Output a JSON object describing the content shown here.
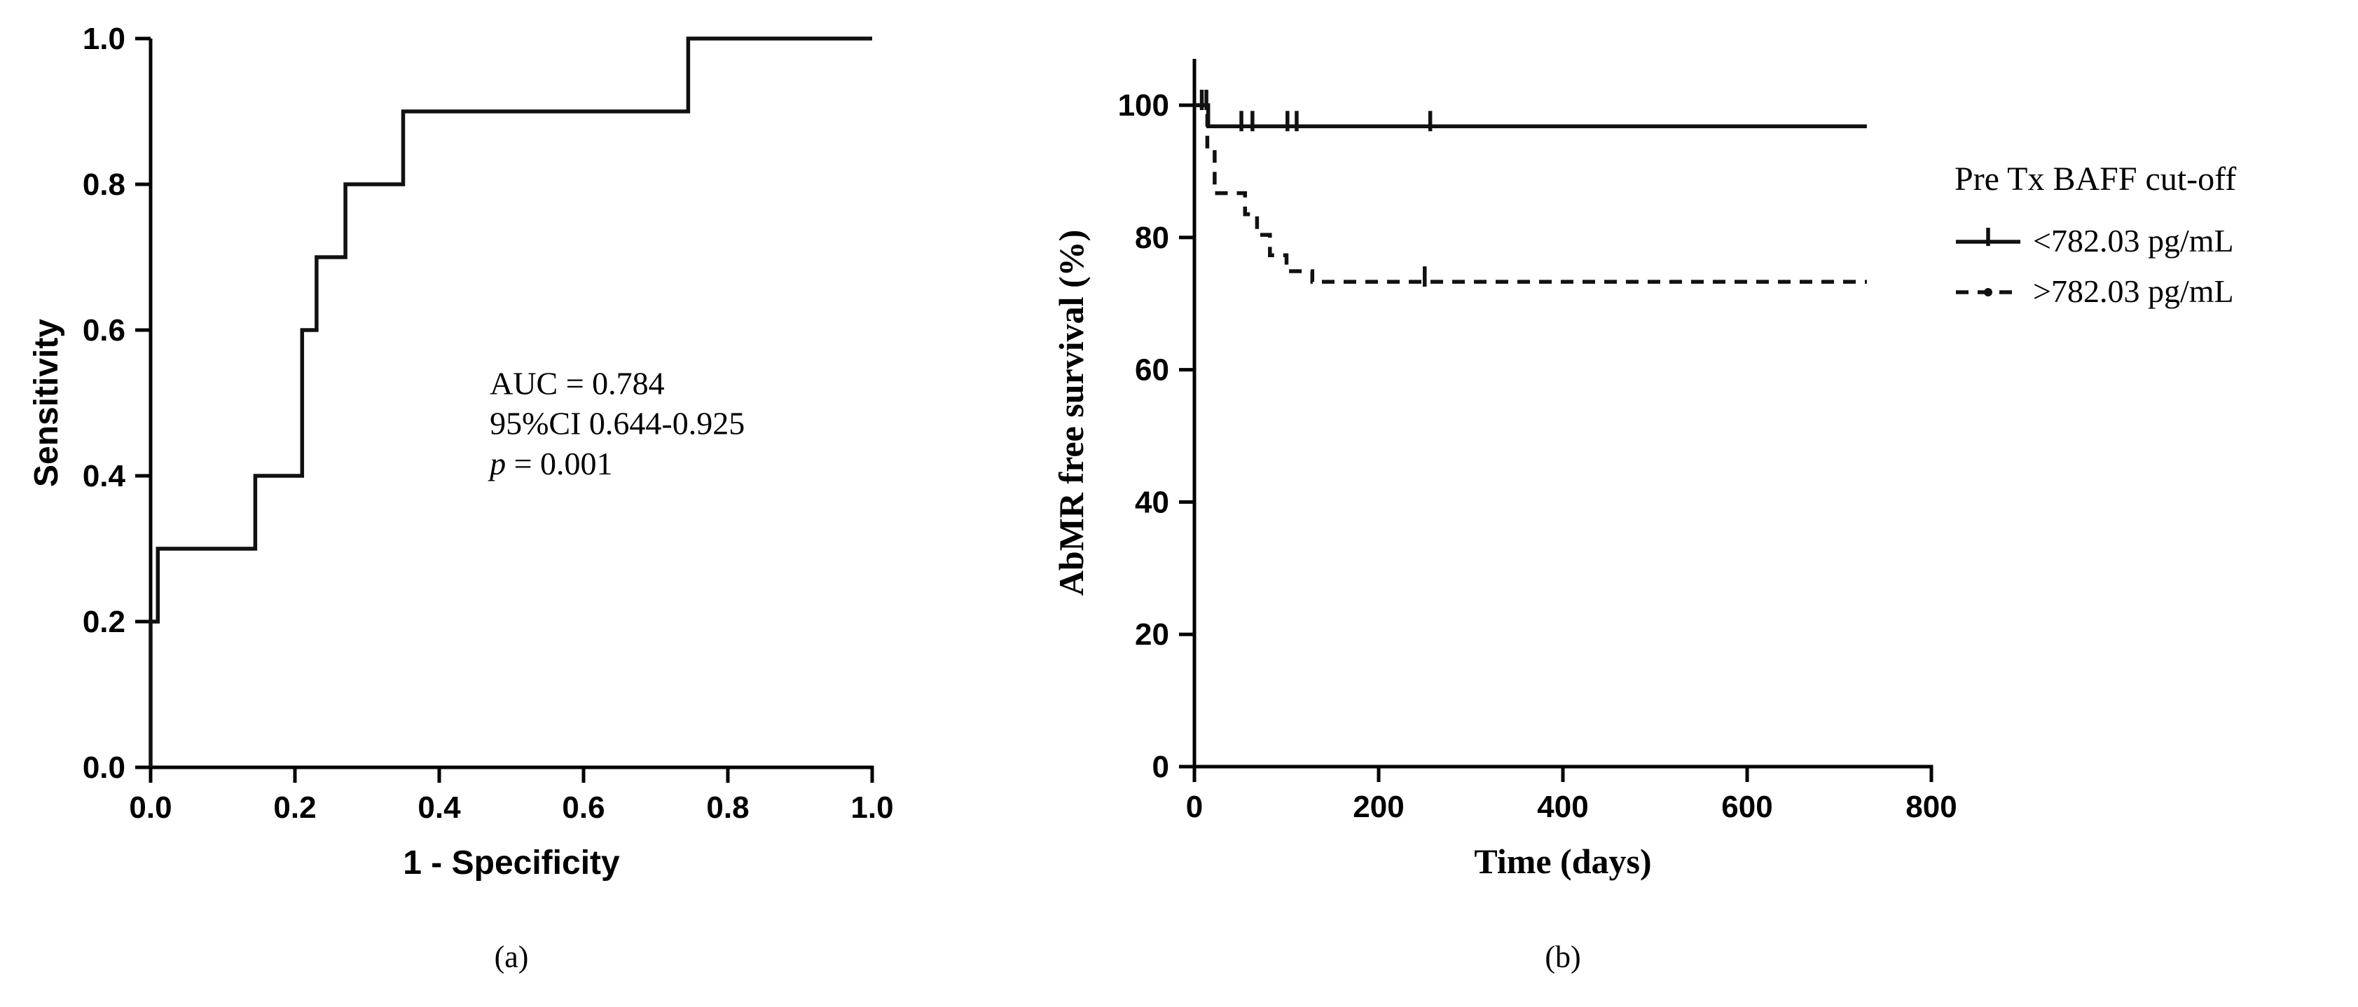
{
  "figure": {
    "background": "#ffffff",
    "ink": "#000000",
    "panel_labels": {
      "a": "(a)",
      "b": "(b)"
    }
  },
  "legend": {
    "title": "Pre Tx BAFF cut-off",
    "position": "right-of-chart-b",
    "items": [
      {
        "label": "<782.03 pg/mL",
        "style": "solid",
        "marker": "censor-tick"
      },
      {
        "label": ">782.03 pg/mL",
        "style": "dashed",
        "marker": "dot"
      }
    ]
  },
  "chart_data": [
    {
      "id": "roc",
      "type": "line",
      "title": "",
      "xlabel": "1 - Specificity",
      "ylabel": "Sensitivity",
      "xlim": [
        0,
        1
      ],
      "ylim": [
        0,
        1
      ],
      "grid": false,
      "xticks": [
        0,
        0.2,
        0.4,
        0.6,
        0.8,
        1.0
      ],
      "xtick_labels": [
        "0.0",
        "0.2",
        "0.4",
        "0.6",
        "0.8",
        "1.0"
      ],
      "yticks": [
        0,
        0.2,
        0.4,
        0.6,
        0.8,
        1.0
      ],
      "ytick_labels": [
        "0.0",
        "0.2",
        "0.4",
        "0.6",
        "0.8",
        "1.0"
      ],
      "series": [
        {
          "name": "ROC curve",
          "style": "solid",
          "points": [
            [
              0,
              0
            ],
            [
              0,
              0.2
            ],
            [
              0.01,
              0.2
            ],
            [
              0.01,
              0.3
            ],
            [
              0.145,
              0.3
            ],
            [
              0.145,
              0.4
            ],
            [
              0.21,
              0.4
            ],
            [
              0.21,
              0.6
            ],
            [
              0.23,
              0.6
            ],
            [
              0.23,
              0.7
            ],
            [
              0.27,
              0.7
            ],
            [
              0.27,
              0.8
            ],
            [
              0.35,
              0.8
            ],
            [
              0.35,
              0.9
            ],
            [
              0.745,
              0.9
            ],
            [
              0.745,
              1.0
            ],
            [
              1,
              1
            ]
          ]
        }
      ],
      "annotation": {
        "x": 0.47,
        "y": 0.512,
        "line_step": 0.055,
        "lines": [
          {
            "text": "AUC = 0.784"
          },
          {
            "text": "95%CI 0.644-0.925"
          },
          {
            "text": "p = 0.001",
            "italic_chars": 1
          }
        ]
      }
    },
    {
      "id": "km",
      "type": "line",
      "title": "",
      "xlabel": "Time (days)",
      "ylabel": "AbMR free survival (%)",
      "xlim": [
        0,
        800
      ],
      "ylim": [
        0,
        107
      ],
      "grid": false,
      "xticks": [
        0,
        200,
        400,
        600,
        800
      ],
      "xtick_labels": [
        "0",
        "200",
        "400",
        "600",
        "800"
      ],
      "yticks": [
        0,
        20,
        40,
        60,
        80,
        100
      ],
      "ytick_labels": [
        "0",
        "20",
        "40",
        "60",
        "80",
        "100"
      ],
      "series": [
        {
          "name": "<782.03 pg/mL",
          "style": "solid",
          "points": [
            [
              0,
              100
            ],
            [
              15,
              100
            ],
            [
              15,
              96.8
            ],
            [
              730,
              96.8
            ]
          ],
          "censor_x": [
            8,
            13,
            51,
            63,
            101,
            111,
            256
          ]
        },
        {
          "name": ">782.03 pg/mL",
          "style": "dashed",
          "points": [
            [
              0,
              100
            ],
            [
              14,
              100
            ],
            [
              14,
              93.3
            ],
            [
              22,
              93.3
            ],
            [
              22,
              86.7
            ],
            [
              55,
              86.7
            ],
            [
              55,
              83.5
            ],
            [
              68,
              83.5
            ],
            [
              68,
              80.4
            ],
            [
              82,
              80.4
            ],
            [
              82,
              77.3
            ],
            [
              100,
              77.3
            ],
            [
              100,
              74.9
            ],
            [
              128,
              74.9
            ],
            [
              128,
              73.3
            ],
            [
              730,
              73.3
            ]
          ],
          "censor_x": [
            250
          ]
        }
      ]
    }
  ]
}
